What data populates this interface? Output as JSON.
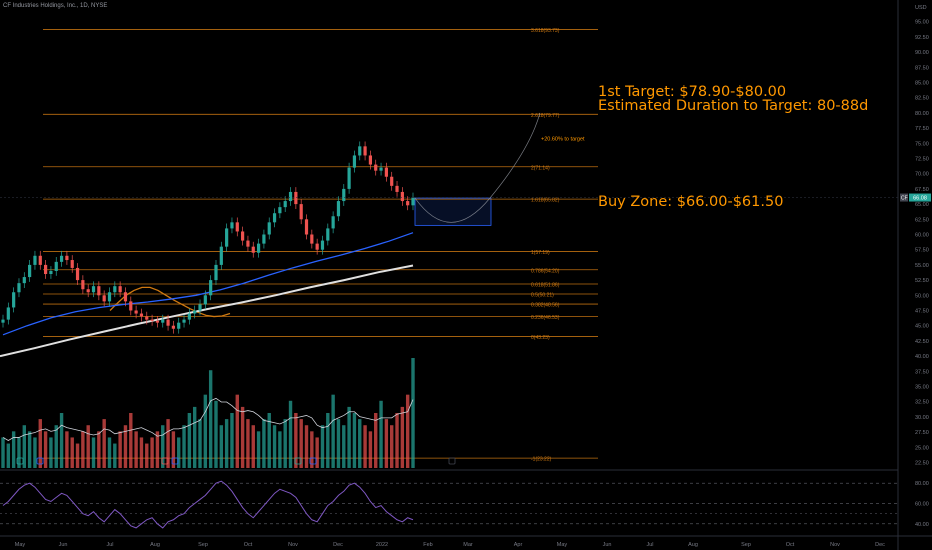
{
  "title": "CF Industries Holdings, Inc., 1D, NYSE",
  "currency": "USD",
  "ticker_badge": "CF",
  "last_price": "66.08",
  "annotations": {
    "target_line1": "1st Target: $78.90-$80.00",
    "target_line2": "Estimated Duration to Target: 80-88d",
    "buy_zone": "Buy Zone: $66.00-$61.50",
    "pct_to_target": "+20.60% to target"
  },
  "colors": {
    "background": "#000000",
    "fib": "#d07a12",
    "annotation": "#ff9800",
    "up": "#26a69a",
    "down": "#ef5350",
    "ma_fast": "#d07a12",
    "ma_mid": "#2962ff",
    "ma_slow": "#e0e0e0",
    "rsi": "#7e57c2",
    "zone": "#2962ff"
  },
  "chart_data": [
    {
      "type": "line",
      "title": "CF Industries Holdings, Inc., 1D, NYSE",
      "ylabel": "USD",
      "ylim": [
        22.5,
        97.5
      ],
      "price_ticks": [
        "95.00",
        "92.50",
        "90.00",
        "87.50",
        "85.00",
        "82.50",
        "80.00",
        "77.50",
        "75.00",
        "72.50",
        "70.00",
        "67.50",
        "65.00",
        "62.50",
        "60.00",
        "57.50",
        "55.00",
        "52.50",
        "50.00",
        "47.50",
        "45.00",
        "42.50",
        "40.00",
        "37.50",
        "35.00",
        "32.50",
        "30.00",
        "27.50",
        "25.00",
        "22.50"
      ],
      "x_ticks": [
        "May",
        "Jun",
        "Jul",
        "Aug",
        "Sep",
        "Oct",
        "Nov",
        "Dec",
        "2022",
        "Feb",
        "Mar",
        "Apr",
        "May",
        "Jun",
        "Jul",
        "Aug",
        "Sep",
        "Oct",
        "Nov",
        "Dec"
      ],
      "fib_levels": [
        {
          "label": "3.618(93.73)",
          "value": 93.73
        },
        {
          "label": "2.618(79.77)",
          "value": 79.77
        },
        {
          "label": "2(71.14)",
          "value": 71.14
        },
        {
          "label": "1.618(65.82)",
          "value": 65.82
        },
        {
          "label": "1(57.19)",
          "value": 57.19
        },
        {
          "label": "0.786(54.20)",
          "value": 54.2
        },
        {
          "label": "0.618(51.86)",
          "value": 51.86
        },
        {
          "label": "0.5(50.21)",
          "value": 50.21
        },
        {
          "label": "0.382(48.56)",
          "value": 48.56
        },
        {
          "label": "0.236(46.53)",
          "value": 46.53
        },
        {
          "label": "0(43.23)",
          "value": 43.23
        },
        {
          "label": "-1(23.22)",
          "value": 23.22
        }
      ],
      "buy_zone": [
        61.5,
        66.0
      ],
      "target_zone": [
        78.9,
        80.0
      ],
      "series": [
        {
          "name": "",
          "kind": "close",
          "values": [
            46.0,
            48.0,
            50.5,
            52.0,
            53.0,
            55.0,
            56.5,
            55.0,
            53.5,
            54.0,
            55.5,
            56.5,
            55.8,
            54.5,
            52.5,
            51.0,
            50.5,
            51.5,
            50.0,
            49.0,
            50.5,
            51.5,
            50.5,
            49.0,
            47.5,
            47.0,
            46.5,
            46.0,
            45.8,
            45.5,
            46.0,
            45.0,
            44.5,
            45.5,
            46.0,
            47.0,
            47.5,
            48.5,
            50.0,
            52.5,
            55.0,
            58.0,
            61.0,
            62.0,
            60.5,
            59.0,
            58.0,
            57.0,
            58.5,
            60.0,
            62.0,
            63.5,
            64.5,
            65.5,
            67.0,
            65.0,
            62.5,
            60.0,
            58.5,
            57.5,
            59.0,
            61.0,
            63.0,
            65.5,
            67.5,
            71.0,
            73.0,
            74.5,
            73.0,
            71.5,
            70.5,
            71.0,
            69.5,
            68.0,
            67.0,
            65.5,
            64.8,
            66.08
          ]
        },
        {
          "name": "",
          "kind": "ma_fast",
          "values": [
            47.5,
            48.8,
            50.0,
            50.8,
            51.3,
            51.3,
            50.8,
            50.0,
            49.2,
            48.5,
            47.8,
            47.2,
            46.7,
            46.5,
            46.6,
            47.0
          ]
        },
        {
          "name": "",
          "kind": "ma_mid",
          "values": [
            43.5,
            45.0,
            46.3,
            47.3,
            48.0,
            48.5,
            48.9,
            49.4,
            50.0,
            50.9,
            52.0,
            53.3,
            54.5,
            55.6,
            56.6,
            57.7,
            58.9,
            60.3
          ]
        },
        {
          "name": "",
          "kind": "ma_slow",
          "values": [
            40.0,
            41.3,
            42.7,
            44.0,
            45.3,
            46.5,
            47.7,
            48.8,
            50.0,
            51.3,
            52.5,
            53.8,
            54.9
          ]
        }
      ]
    },
    {
      "type": "bar",
      "name": "Volume",
      "values": [
        5,
        4,
        6,
        5,
        7,
        6,
        5,
        8,
        6,
        5,
        7,
        9,
        6,
        5,
        4,
        6,
        7,
        5,
        6,
        8,
        5,
        4,
        6,
        7,
        9,
        6,
        5,
        4,
        5,
        6,
        7,
        8,
        6,
        5,
        7,
        9,
        10,
        8,
        12,
        16,
        11,
        7,
        8,
        9,
        12,
        10,
        8,
        7,
        6,
        8,
        9,
        7,
        6,
        8,
        11,
        9,
        8,
        7,
        6,
        5,
        7,
        9,
        12,
        8,
        7,
        10,
        9,
        8,
        7,
        6,
        9,
        11,
        8,
        7,
        9,
        10,
        12,
        18
      ]
    },
    {
      "type": "line",
      "name": "RSI",
      "ylim": [
        30,
        90
      ],
      "y_ticks": [
        "80.00",
        "60.00",
        "40.00"
      ],
      "values": [
        58,
        62,
        68,
        74,
        78,
        80,
        76,
        70,
        64,
        62,
        66,
        70,
        68,
        62,
        56,
        50,
        48,
        52,
        46,
        42,
        48,
        54,
        50,
        44,
        38,
        36,
        40,
        44,
        46,
        40,
        36,
        42,
        44,
        48,
        50,
        56,
        60,
        64,
        68,
        74,
        80,
        82,
        78,
        72,
        64,
        56,
        50,
        46,
        52,
        58,
        64,
        70,
        74,
        72,
        70,
        66,
        58,
        50,
        44,
        42,
        50,
        58,
        62,
        68,
        72,
        78,
        80,
        76,
        70,
        62,
        56,
        58,
        52,
        48,
        44,
        42,
        46,
        44
      ]
    }
  ]
}
